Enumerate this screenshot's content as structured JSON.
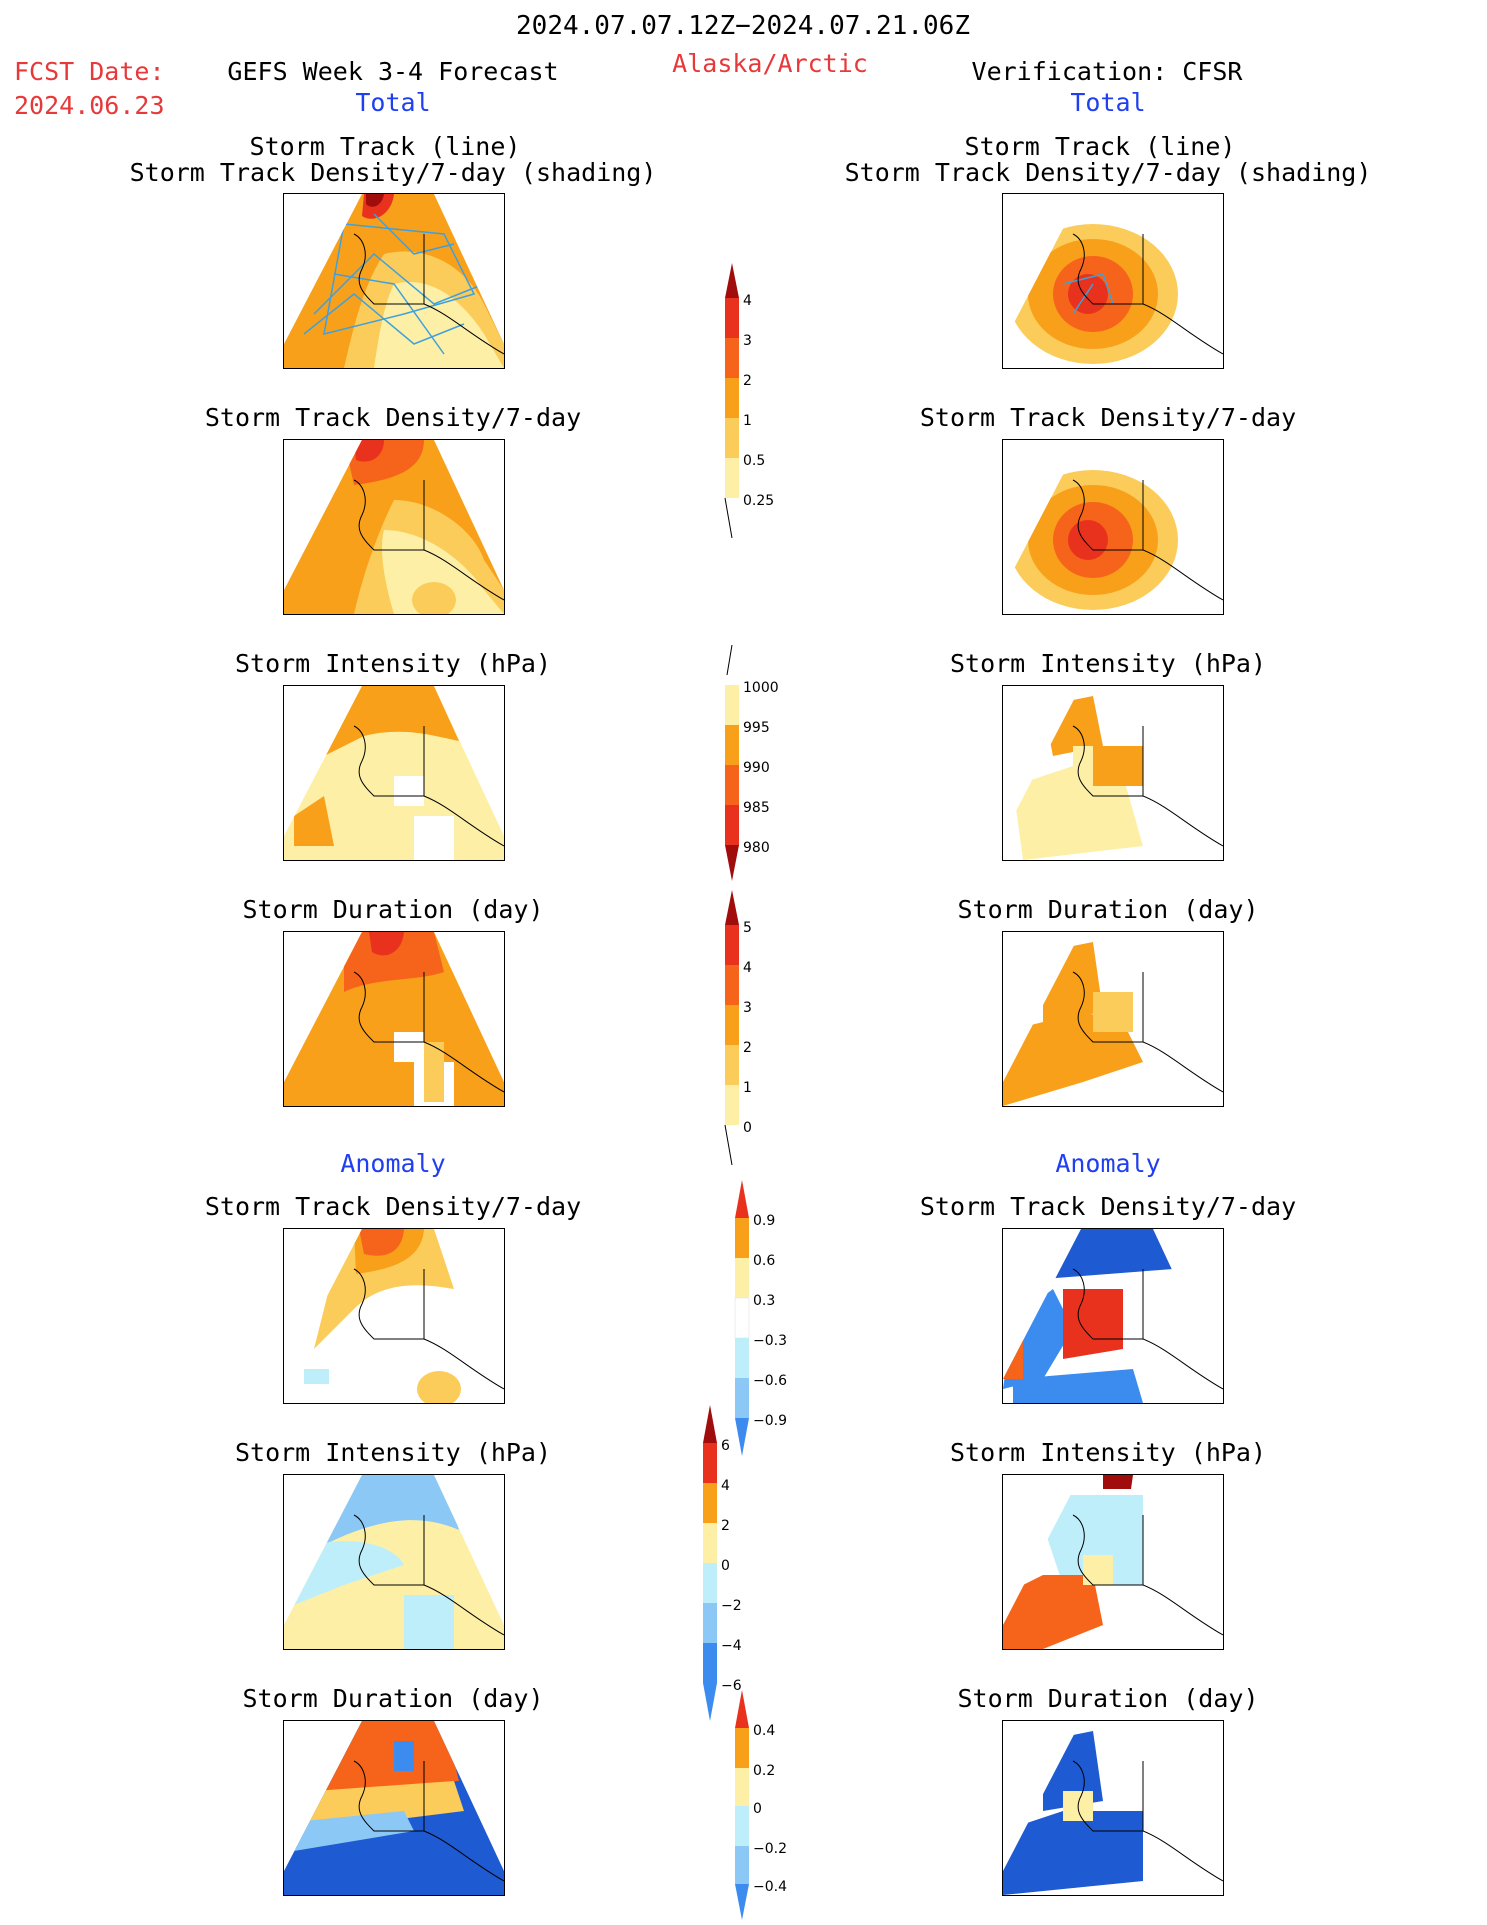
{
  "header": {
    "date_range": "2024.07.07.12Z−2024.07.21.06Z",
    "fcst_date_label": "FCST Date:",
    "fcst_date_value": "2024.06.23",
    "forecast_title": "GEFS Week 3-4 Forecast",
    "region": "Alaska/Arctic",
    "verification_title": "Verification: CFSR",
    "total_left": "Total",
    "total_right": "Total",
    "anomaly_left": "Anomaly",
    "anomaly_right": "Anomaly"
  },
  "panel_titles": {
    "track_line": "Storm Track (line)",
    "track_shading": "Storm Track Density/7-day (shading)",
    "track_density": "Storm Track Density/7-day",
    "intensity": "Storm Intensity (hPa)",
    "duration": "Storm Duration (day)"
  },
  "colorbars": {
    "density": [
      "4",
      "3",
      "2",
      "1",
      "0.5",
      "0.25"
    ],
    "intensity": [
      "1000",
      "995",
      "990",
      "985",
      "980"
    ],
    "duration": [
      "5",
      "4",
      "3",
      "2",
      "1",
      "0"
    ],
    "density_anom": [
      "0.9",
      "0.6",
      "0.3",
      "−0.3",
      "−0.6",
      "−0.9"
    ],
    "intensity_anom": [
      "6",
      "4",
      "2",
      "0",
      "−2",
      "−4",
      "−6"
    ],
    "duration_anom": [
      "0.4",
      "0.2",
      "0",
      "−0.2",
      "−0.4"
    ]
  },
  "colors": {
    "dark_red": "#a10c0c",
    "red": "#e8321e",
    "orange_red": "#f5641a",
    "orange": "#f8a01a",
    "light_orange": "#fbcc5a",
    "yellow": "#fdf0a6",
    "pale_yellow": "#fef8c8",
    "light_blue": "#bfeefb",
    "mid_blue": "#8cc8f5",
    "blue": "#3c8cf0",
    "dark_blue": "#1e5ad2",
    "track_line": "#3fa0dc"
  }
}
